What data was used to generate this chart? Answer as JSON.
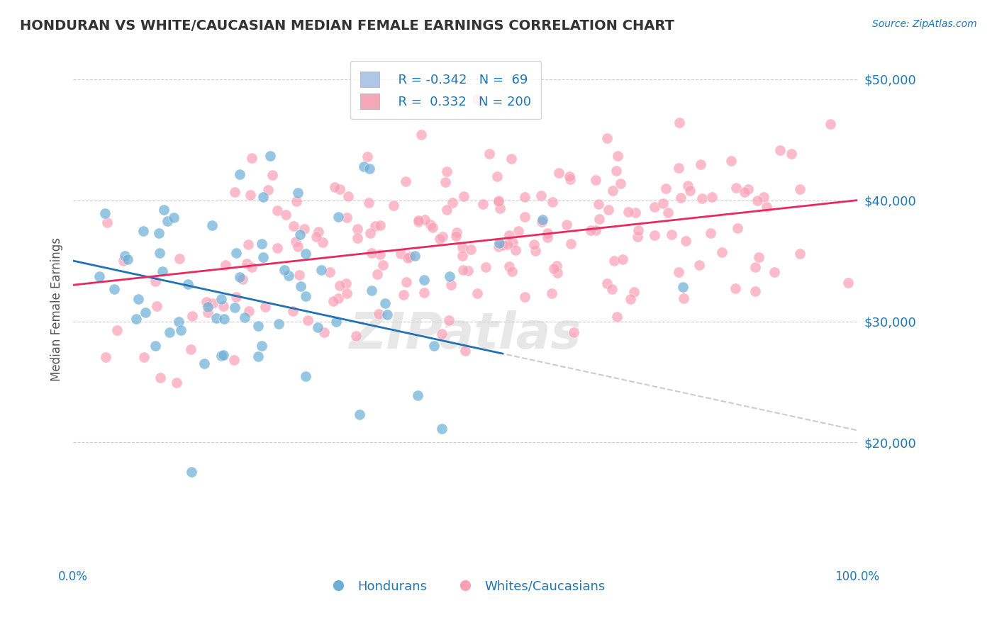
{
  "title": "HONDURAN VS WHITE/CAUCASIAN MEDIAN FEMALE EARNINGS CORRELATION CHART",
  "source_text": "Source: ZipAtlas.com",
  "xlabel": "",
  "ylabel": "Median Female Earnings",
  "x_min": 0.0,
  "x_max": 1.0,
  "y_min": 10000,
  "y_max": 52000,
  "yticks": [
    20000,
    30000,
    40000,
    50000
  ],
  "ytick_labels": [
    "$20,000",
    "$30,000",
    "$40,000",
    "$50,000"
  ],
  "xtick_labels": [
    "0.0%",
    "100.0%"
  ],
  "blue_R": -0.342,
  "blue_N": 69,
  "pink_R": 0.332,
  "pink_N": 200,
  "blue_color": "#6baed6",
  "pink_color": "#fa9fb5",
  "blue_line_color": "#2171b5",
  "pink_line_color": "#e8295e",
  "watermark_text": "ZIPatlas",
  "watermark_color": "#cccccc",
  "label_blue": "Hondurans",
  "label_pink": "Whites/Caucasians",
  "legend_blue_face": "#aec6e8",
  "legend_pink_face": "#f4a7b9",
  "legend_text_color": "#1f77b4",
  "title_color": "#333333",
  "axis_label_color": "#555555",
  "grid_color": "#cccccc",
  "background_color": "#ffffff",
  "seed": 42
}
